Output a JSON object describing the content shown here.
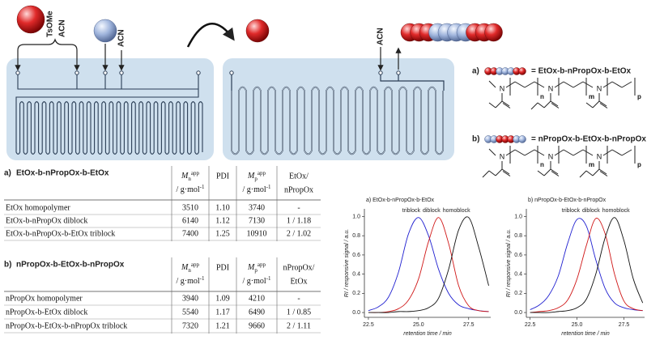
{
  "scheme": {
    "initiator_label": "TsOMe",
    "solvent_labels": [
      "ACN",
      "ACN",
      "ACN"
    ],
    "atom_label": "N",
    "repeat_indices": [
      "n",
      "m",
      "p"
    ],
    "polymers": [
      {
        "label": "a)",
        "formula": "= EtOx-b-nPropOx-b-EtOx"
      },
      {
        "label": "b)",
        "formula": "= nPropOx-b-EtOx-b-nPropOx"
      }
    ]
  },
  "tables": [
    {
      "label": "a)",
      "title": "EtOx-b-nPropOx-b-EtOx",
      "headers": [
        {
          "symbol": "M",
          "sub": "n",
          "sup": "app",
          "unit": "/ g·mol",
          "unit_sup": "-1"
        },
        {
          "lines": [
            "PDI"
          ]
        },
        {
          "symbol": "M",
          "sub": "p",
          "sup": "app",
          "unit": "/ g·mol",
          "unit_sup": "-1"
        },
        {
          "lines": [
            "EtOx/",
            "nPropOx"
          ]
        }
      ],
      "rows": [
        [
          "EtOx homopolymer",
          "3510",
          "1.10",
          "3740",
          "-"
        ],
        [
          "EtOx-b-nPropOx diblock",
          "6140",
          "1.12",
          "7130",
          "1 / 1.18"
        ],
        [
          "EtOx-b-nPropOx-b-EtOx triblock",
          "7400",
          "1.25",
          "10910",
          "2 / 1.02"
        ]
      ]
    },
    {
      "label": "b)",
      "title": "nPropOx-b-EtOx-b-nPropOx",
      "headers": [
        {
          "symbol": "M",
          "sub": "n",
          "sup": "app",
          "unit": "/ g·mol",
          "unit_sup": "-1"
        },
        {
          "lines": [
            "PDI"
          ]
        },
        {
          "symbol": "M",
          "sub": "p",
          "sup": "app",
          "unit": "/ g·mol",
          "unit_sup": "-1"
        },
        {
          "lines": [
            "nPropOx/",
            "EtOx"
          ]
        }
      ],
      "rows": [
        [
          "nPropOx homopolymer",
          "3940",
          "1.09",
          "4210",
          "-"
        ],
        [
          "nPropOx-b-EtOx diblock",
          "5540",
          "1.17",
          "6490",
          "1 / 0.85"
        ],
        [
          "nPropOx-b-EtOx-b-nPropOx triblock",
          "7320",
          "1.21",
          "9660",
          "2 / 1.11"
        ]
      ]
    }
  ],
  "chart_data": [
    {
      "type": "line",
      "title": "a) EtOx-b-nPropOx-b-EtOx",
      "x_label": "retention time / min",
      "y_label": "RI / responsive signal / a.u.",
      "x": [
        22.5,
        23,
        23.5,
        24,
        24.5,
        25,
        25.5,
        26,
        26.5,
        27,
        27.5,
        28,
        28.5
      ],
      "series": [
        {
          "name": "triblock",
          "color": "#2020d0",
          "values": [
            0.02,
            0.06,
            0.16,
            0.42,
            0.82,
            0.99,
            0.8,
            0.45,
            0.2,
            0.08,
            0.04,
            0.02,
            0.01
          ]
        },
        {
          "name": "diblock",
          "color": "#d01818",
          "values": [
            0,
            0,
            0.01,
            0.04,
            0.13,
            0.35,
            0.74,
            0.99,
            0.72,
            0.28,
            0.07,
            0.02,
            0.01
          ]
        },
        {
          "name": "homoblock",
          "color": "#111111",
          "values": [
            0,
            0,
            0,
            0.01,
            0.01,
            0.02,
            0.05,
            0.15,
            0.45,
            0.86,
            0.99,
            0.68,
            0.28
          ]
        }
      ],
      "xlim": [
        22.3,
        28.6
      ],
      "ylim": [
        -0.05,
        1.08
      ],
      "xticks": [
        22.5,
        {
          "value": 25,
          "label": "25.0"
        },
        27.5
      ],
      "yticks": [
        {
          "value": 0,
          "label": "0.0"
        },
        0.2,
        0.4,
        0.6,
        0.8,
        {
          "value": 1,
          "label": "1.0"
        }
      ],
      "legend": "top"
    },
    {
      "type": "line",
      "title": "b) nPropOx-b-EtOx-b-nPropOx",
      "x_label": "retention time / min",
      "y_label": "RI / responsive signal / a.u.",
      "x": [
        22.5,
        23,
        23.5,
        24,
        24.5,
        25,
        25.5,
        26,
        26.5,
        27,
        27.5,
        28,
        28.5
      ],
      "series": [
        {
          "name": "triblock",
          "color": "#2020d0",
          "values": [
            0.03,
            0.08,
            0.18,
            0.38,
            0.72,
            0.97,
            0.9,
            0.55,
            0.25,
            0.1,
            0.05,
            0.03,
            0.02
          ]
        },
        {
          "name": "diblock",
          "color": "#d01818",
          "values": [
            0,
            0.01,
            0.02,
            0.05,
            0.13,
            0.35,
            0.7,
            0.98,
            0.82,
            0.4,
            0.12,
            0.04,
            0.02
          ]
        },
        {
          "name": "homoblock",
          "color": "#111111",
          "values": [
            0,
            0,
            0,
            0.01,
            0.02,
            0.05,
            0.14,
            0.4,
            0.78,
            0.99,
            0.75,
            0.35,
            0.1
          ]
        }
      ],
      "xlim": [
        22.3,
        28.6
      ],
      "ylim": [
        -0.05,
        1.08
      ],
      "xticks": [
        22.5,
        {
          "value": 25,
          "label": "25.0"
        },
        27.5
      ],
      "yticks": [
        {
          "value": 0,
          "label": "0.0"
        },
        0.2,
        0.4,
        0.6,
        0.8,
        {
          "value": 1,
          "label": "1.0"
        }
      ],
      "legend": "top"
    }
  ]
}
